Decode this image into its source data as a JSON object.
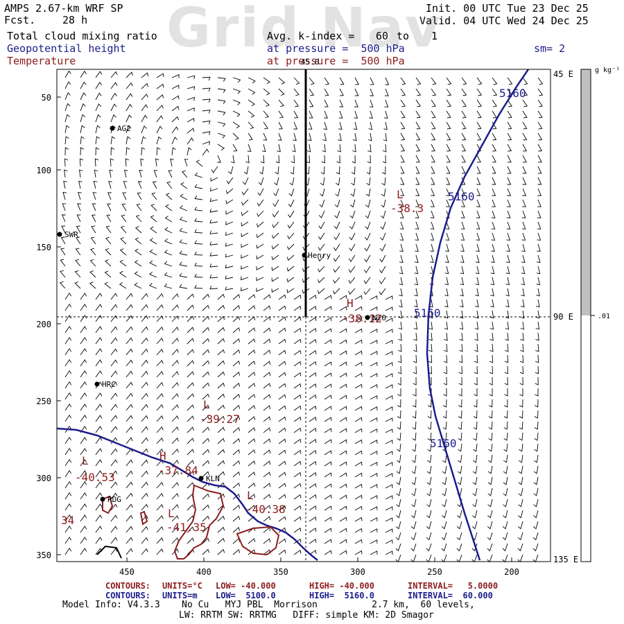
{
  "header": {
    "model": "AMPS 2.67-km WRF SP",
    "fcst_label": "Fcst.",
    "fcst_value": "28 h",
    "init": "Init. 00 UTC Tue 23 Dec 25",
    "valid": "Valid. 04 UTC Wed 24 Dec 25",
    "field1": "Total cloud mixing ratio",
    "avg_label": "Avg. k-index =",
    "avg_from": "60",
    "avg_to_word": "to",
    "avg_to": "1",
    "field2": "Geopotential height",
    "pressure1": "at pressure =  500 hPa",
    "sm": "sm= 2",
    "field3": "Temperature",
    "pressure2": "at pressure =  500 hPa",
    "watermark": "Grid Nav"
  },
  "colorbar": {
    "unit": "g kg⁻¹",
    "value": ".01",
    "colors": {
      "upper": "#c0c0c0",
      "lower": "#ffffff"
    }
  },
  "map": {
    "x_ticks": [
      "450",
      "400",
      "350",
      "300",
      "250",
      "200"
    ],
    "y_ticks": [
      "50",
      "100",
      "150",
      "200",
      "250",
      "300",
      "350"
    ],
    "lon_labels": [
      "45 E",
      "90 E",
      "135 E"
    ],
    "top_label": "45.0",
    "stations": [
      "AG2",
      "SWR",
      "Henry",
      "NZ0",
      "HRC",
      "KLN",
      "RDG"
    ],
    "height_labels": [
      "5160",
      "5160",
      "5160",
      "5160"
    ],
    "extrema": [
      {
        "type": "L",
        "value": "-38.3"
      },
      {
        "type": "H",
        "value": "-38.12"
      },
      {
        "type": "L",
        "value": "-39.27"
      },
      {
        "type": "L",
        "value": "-40.53"
      },
      {
        "type": "H",
        "value": "-37.84"
      },
      {
        "type": "L",
        "value": "-40.38"
      },
      {
        "type": "L",
        "value": "-41.35"
      }
    ],
    "temp_label": "34",
    "colors": {
      "height": "#1c1c8c",
      "temperature": "#8c1c1c",
      "coast": "#1c1c8c",
      "barb": "#000000"
    }
  },
  "footer": {
    "temp_contours": {
      "label": "CONTOURS:",
      "units": "UNITS=°C",
      "low": "LOW= -40.000",
      "high": "HIGH= -40.000",
      "interval": "INTERVAL=   5.0000"
    },
    "height_contours": {
      "label": "CONTOURS:",
      "units": "UNITS=m",
      "low": "LOW=  5100.0",
      "high": "HIGH=  5160.0",
      "interval": "INTERVAL=  60.000"
    },
    "model_info": "Model Info: V4.3.3    No Cu   MYJ PBL  Morrison          2.7 km,  60 levels,",
    "model_info2": "LW: RRTM SW: RRTMG   DIFF: simple KM: 2D Smagor"
  }
}
